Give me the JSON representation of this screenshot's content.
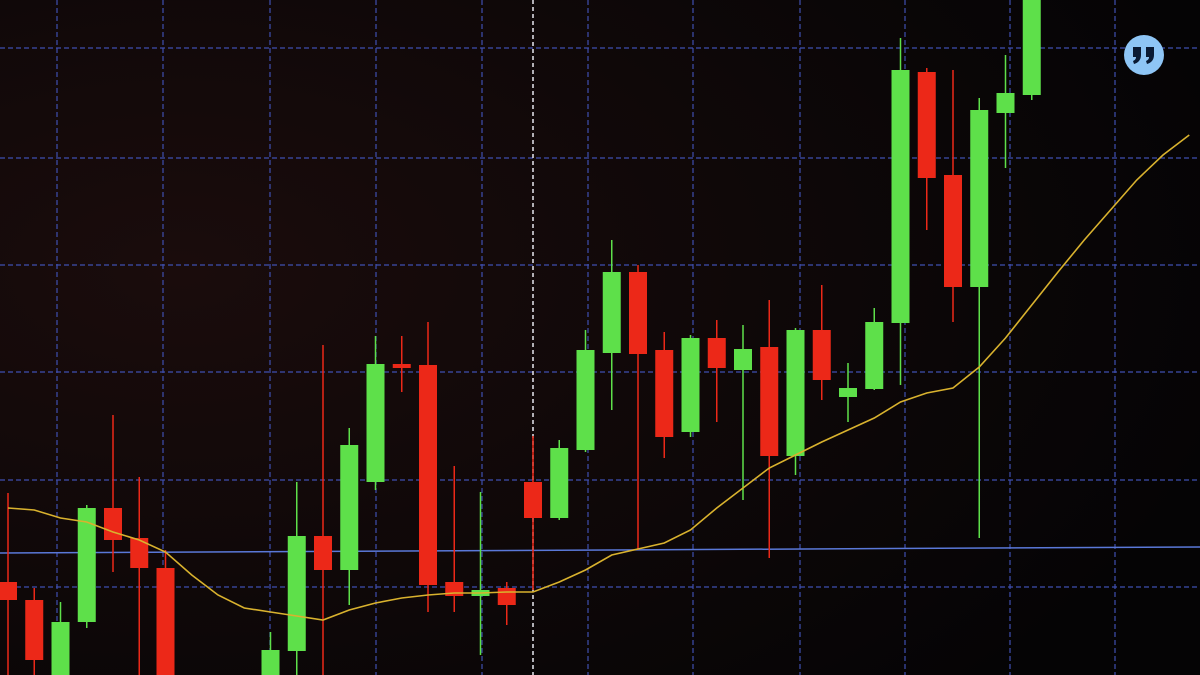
{
  "chart_data": {
    "type": "candlestick",
    "categories": [
      null,
      null,
      null,
      null,
      null,
      null,
      null,
      null,
      null,
      null,
      null,
      null,
      null,
      null,
      null,
      null,
      null,
      null,
      null,
      null,
      null,
      null,
      null,
      null,
      null,
      null,
      null,
      null,
      null,
      null,
      null,
      null,
      null,
      null,
      null,
      null,
      null,
      null,
      null,
      null,
      null,
      null,
      null,
      null,
      null,
      null
    ],
    "open": [
      93,
      75,
      0,
      53,
      167,
      137,
      107,
      null,
      null,
      null,
      0,
      24,
      139,
      105,
      193,
      311,
      310,
      93,
      79,
      87,
      193,
      157,
      225,
      322,
      403,
      325,
      243,
      337,
      305,
      328,
      219,
      345,
      278,
      286,
      352,
      603,
      500,
      388,
      562,
      580,
      null,
      null,
      null,
      null,
      null,
      null
    ],
    "high": [
      182,
      87,
      73,
      170,
      260,
      198,
      125,
      null,
      null,
      null,
      43,
      193,
      330,
      247,
      339,
      339,
      353,
      209,
      183,
      93,
      239,
      235,
      345,
      435,
      410,
      343,
      340,
      355,
      350,
      375,
      347,
      390,
      312,
      367,
      637,
      607,
      605,
      577,
      620,
      675,
      null,
      null,
      null,
      null,
      null,
      null
    ],
    "low": [
      0,
      0,
      0,
      47,
      103,
      0,
      0,
      null,
      null,
      null,
      0,
      0,
      0,
      70,
      185,
      283,
      63,
      63,
      20,
      50,
      85,
      155,
      223,
      265,
      125,
      217,
      238,
      253,
      175,
      117,
      200,
      275,
      253,
      285,
      290,
      445,
      353,
      137,
      507,
      575,
      null,
      null,
      null,
      null,
      null,
      null
    ],
    "close": [
      75,
      15,
      53,
      167,
      135,
      107,
      0,
      null,
      null,
      null,
      25,
      139,
      105,
      230,
      311,
      307,
      90,
      79,
      85,
      70,
      157,
      227,
      325,
      403,
      321,
      238,
      337,
      307,
      326,
      219,
      345,
      295,
      287,
      353,
      605,
      497,
      388,
      565,
      582,
      675,
      null,
      null,
      null,
      null,
      null,
      null
    ],
    "ma_values": [
      167,
      165,
      157,
      153,
      143,
      135,
      123,
      100,
      80,
      67,
      63,
      59,
      55,
      65,
      72,
      77,
      80,
      82,
      82,
      83,
      83,
      93,
      105,
      120,
      126,
      132,
      145,
      167,
      187,
      207,
      220,
      233,
      245,
      257,
      273,
      282,
      287,
      308,
      337,
      370,
      403,
      435,
      465,
      495,
      520,
      540
    ],
    "up_color": "#5ee04a",
    "down_color": "#ec2818",
    "ma_color": "#d9b22e",
    "ylim": [
      0,
      675
    ],
    "grid": true
  }
}
